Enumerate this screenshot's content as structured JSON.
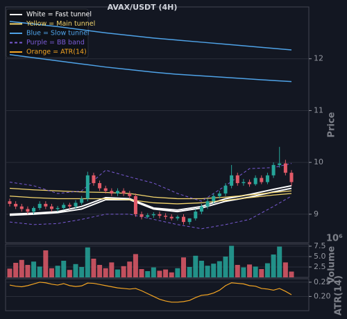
{
  "chart_data": [
    {
      "type": "candlestick",
      "title": "AVAX/USDT (4H)",
      "y_label": "Price",
      "ylim": [
        8.45,
        13.0
      ],
      "yticks": [
        9,
        10,
        11,
        12
      ],
      "grid": true,
      "up_color": "#26a69a",
      "down_color": "#e25a68",
      "open": [
        9.25,
        9.2,
        9.15,
        9.1,
        9.05,
        9.12,
        9.2,
        9.15,
        9.1,
        9.12,
        9.18,
        9.15,
        9.22,
        9.3,
        9.75,
        9.6,
        9.5,
        9.45,
        9.4,
        9.45,
        9.4,
        9.35,
        9.0,
        8.95,
        8.98,
        9.0,
        8.97,
        8.95,
        8.92,
        8.95,
        8.85,
        8.92,
        9.05,
        9.15,
        9.25,
        9.35,
        9.4,
        9.55,
        9.75,
        9.6,
        9.62,
        9.58,
        9.7,
        9.62,
        9.75,
        9.95,
        9.98,
        9.8
      ],
      "high": [
        9.3,
        9.25,
        9.2,
        9.15,
        9.15,
        9.25,
        9.25,
        9.2,
        9.16,
        9.22,
        9.22,
        9.27,
        9.35,
        9.82,
        9.8,
        9.65,
        9.55,
        9.5,
        9.5,
        9.5,
        9.45,
        9.4,
        9.05,
        9.02,
        9.04,
        9.05,
        9.02,
        9.0,
        8.98,
        9.0,
        8.92,
        9.1,
        9.2,
        9.3,
        9.4,
        9.45,
        9.6,
        9.95,
        9.8,
        9.68,
        9.67,
        9.75,
        9.75,
        9.8,
        10.0,
        10.3,
        10.05,
        9.85
      ],
      "low": [
        9.15,
        9.1,
        9.05,
        9.0,
        9.0,
        9.08,
        9.1,
        9.05,
        9.05,
        9.08,
        9.1,
        9.1,
        9.18,
        9.25,
        9.55,
        9.45,
        9.4,
        9.35,
        9.35,
        9.35,
        9.3,
        8.95,
        8.9,
        8.92,
        8.93,
        8.92,
        8.9,
        8.88,
        8.88,
        8.8,
        8.8,
        8.88,
        9.0,
        9.1,
        9.2,
        9.3,
        9.35,
        9.5,
        9.55,
        9.55,
        9.53,
        9.55,
        9.58,
        9.58,
        9.7,
        9.9,
        9.75,
        9.55
      ],
      "close": [
        9.2,
        9.15,
        9.1,
        9.05,
        9.12,
        9.2,
        9.15,
        9.1,
        9.12,
        9.18,
        9.15,
        9.22,
        9.3,
        9.75,
        9.6,
        9.5,
        9.45,
        9.4,
        9.45,
        9.4,
        9.35,
        9.0,
        8.95,
        8.98,
        9.0,
        8.97,
        8.95,
        8.92,
        8.95,
        8.85,
        8.92,
        9.05,
        9.15,
        9.25,
        9.35,
        9.4,
        9.55,
        9.75,
        9.6,
        9.62,
        9.58,
        9.7,
        9.62,
        9.75,
        9.95,
        9.98,
        9.8,
        9.62
      ],
      "overlay_x": [
        0,
        4,
        8,
        12,
        16,
        20,
        24,
        28,
        32,
        36,
        40,
        44,
        47
      ],
      "series": [
        {
          "name": "White = Fast tunnel",
          "color": "#ffffff",
          "dashed": false,
          "width": 2,
          "lines": [
            [
              9.0,
              9.02,
              9.05,
              9.15,
              9.32,
              9.3,
              9.12,
              9.08,
              9.15,
              9.3,
              9.38,
              9.48,
              9.55
            ],
            [
              8.98,
              9.0,
              9.03,
              9.1,
              9.28,
              9.28,
              9.1,
              9.05,
              9.12,
              9.25,
              9.33,
              9.43,
              9.5
            ]
          ]
        },
        {
          "name": "Yellow = Main tunnel",
          "color": "#f5d76e",
          "dashed": false,
          "width": 1.3,
          "lines": [
            [
              9.5,
              9.47,
              9.45,
              9.43,
              9.42,
              9.4,
              9.33,
              9.3,
              9.3,
              9.33,
              9.37,
              9.42,
              9.45
            ],
            [
              9.35,
              9.32,
              9.3,
              9.3,
              9.3,
              9.28,
              9.22,
              9.2,
              9.22,
              9.27,
              9.32,
              9.37,
              9.4
            ]
          ]
        },
        {
          "name": "Blue = Slow tunnel",
          "color": "#4fa3e8",
          "dashed": false,
          "width": 1.5,
          "lines": [
            [
              12.72,
              12.67,
              12.62,
              12.56,
              12.5,
              12.45,
              12.4,
              12.36,
              12.32,
              12.28,
              12.24,
              12.2,
              12.17
            ],
            [
              12.08,
              12.02,
              11.96,
              11.9,
              11.84,
              11.79,
              11.74,
              11.7,
              11.67,
              11.64,
              11.61,
              11.58,
              11.56
            ]
          ]
        },
        {
          "name": "Purple = BB band",
          "color": "#7a5bd6",
          "dashed": true,
          "width": 1,
          "lines": [
            [
              9.62,
              9.55,
              9.4,
              9.45,
              9.85,
              9.72,
              9.6,
              9.4,
              9.25,
              9.55,
              9.88,
              9.9,
              9.98
            ],
            [
              8.85,
              8.8,
              8.82,
              8.9,
              9.0,
              9.0,
              8.9,
              8.8,
              8.72,
              8.8,
              8.9,
              9.15,
              9.35
            ]
          ]
        }
      ]
    },
    {
      "type": "bar",
      "y_label": "Volume",
      "offset_label": "10⁶",
      "ylim": [
        0,
        8
      ],
      "yticks": [
        2.5,
        {
          "value": 5,
          "label": "5.0"
        },
        7.5
      ],
      "grid": true,
      "values": [
        2.1,
        3.5,
        4.2,
        3.0,
        3.8,
        2.6,
        6.5,
        2.2,
        2.8,
        4.0,
        1.8,
        3.2,
        2.5,
        7.2,
        4.5,
        3.0,
        2.2,
        3.6,
        1.9,
        2.7,
        3.8,
        5.6,
        2.0,
        1.5,
        2.4,
        1.6,
        1.9,
        1.2,
        2.2,
        4.8,
        2.5,
        5.2,
        4.0,
        2.8,
        3.3,
        3.9,
        5.0,
        7.6,
        3.0,
        2.4,
        3.1,
        2.6,
        2.0,
        3.4,
        5.5,
        7.4,
        3.6,
        1.4
      ]
    },
    {
      "type": "line",
      "y_label": "ATR(14)",
      "ylim": [
        0.15,
        0.262
      ],
      "yticks": [
        0.25,
        {
          "value": 0.2,
          "label": "0.20"
        }
      ],
      "grid": true,
      "series": [
        {
          "name": "Orange = ATR(14)",
          "color": "#f5a623",
          "values": [
            0.24,
            0.236,
            0.234,
            0.238,
            0.244,
            0.25,
            0.248,
            0.243,
            0.24,
            0.245,
            0.238,
            0.235,
            0.237,
            0.247,
            0.246,
            0.242,
            0.238,
            0.234,
            0.23,
            0.228,
            0.226,
            0.228,
            0.22,
            0.21,
            0.2,
            0.19,
            0.184,
            0.18,
            0.18,
            0.182,
            0.186,
            0.196,
            0.204,
            0.206,
            0.212,
            0.222,
            0.238,
            0.248,
            0.246,
            0.244,
            0.238,
            0.236,
            0.228,
            0.226,
            0.222,
            0.228,
            0.218,
            0.206
          ]
        }
      ]
    }
  ]
}
